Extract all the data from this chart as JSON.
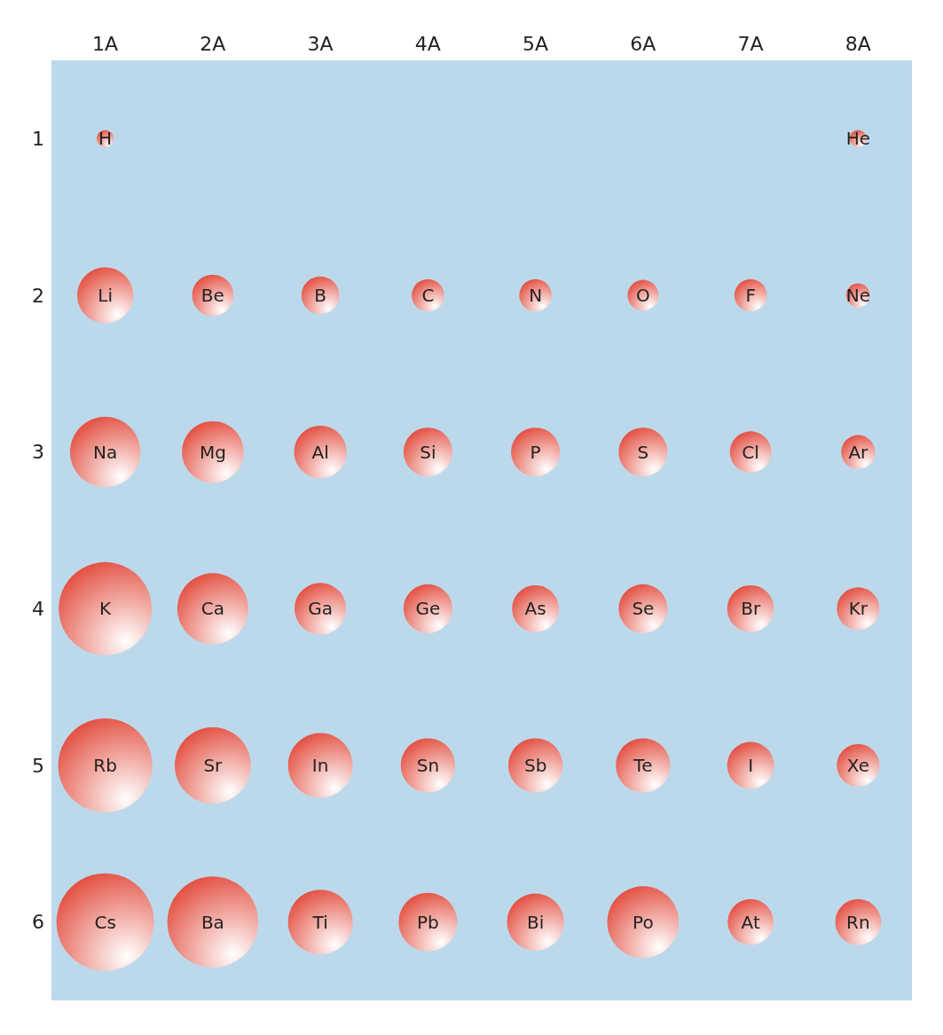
{
  "chart_data": {
    "type": "bubble",
    "categories": [
      "1A",
      "2A",
      "3A",
      "4A",
      "5A",
      "6A",
      "7A",
      "8A"
    ],
    "ylim": [
      6.5,
      0.5
    ],
    "yticks": [
      1,
      2,
      3,
      4,
      5,
      6
    ],
    "grid": false,
    "series": [
      {
        "color": "#e2493a",
        "x": [
          "1A",
          "8A"
        ],
        "values": [
          1,
          1
        ],
        "sizes": [
          0.03,
          0.03
        ],
        "value_labels": [
          "H",
          "He"
        ]
      },
      {
        "color": "#e2493a",
        "x": [
          "1A",
          "2A",
          "3A",
          "4A",
          "5A",
          "6A",
          "7A",
          "8A"
        ],
        "values": [
          2,
          2,
          2,
          2,
          2,
          2,
          2,
          2
        ],
        "sizes": [
          0.33,
          0.18,
          0.15,
          0.11,
          0.11,
          0.1,
          0.11,
          0.06
        ],
        "value_labels": [
          "Li",
          "Be",
          "B",
          "C",
          "N",
          "O",
          "F",
          "Ne"
        ]
      },
      {
        "color": "#e2493a",
        "x": [
          "1A",
          "2A",
          "3A",
          "4A",
          "5A",
          "6A",
          "7A",
          "8A"
        ],
        "values": [
          3,
          3,
          3,
          3,
          3,
          3,
          3,
          3
        ],
        "sizes": [
          0.52,
          0.4,
          0.29,
          0.25,
          0.25,
          0.25,
          0.18,
          0.12
        ],
        "value_labels": [
          "Na",
          "Mg",
          "Al",
          "Si",
          "P",
          "S",
          "Cl",
          "Ar"
        ]
      },
      {
        "color": "#e2493a",
        "x": [
          "1A",
          "2A",
          "3A",
          "4A",
          "5A",
          "6A",
          "7A",
          "8A"
        ],
        "values": [
          4,
          4,
          4,
          4,
          4,
          4,
          4,
          4
        ],
        "sizes": [
          0.91,
          0.53,
          0.28,
          0.25,
          0.23,
          0.25,
          0.23,
          0.19
        ],
        "value_labels": [
          "K",
          "Ca",
          "Ga",
          "Ge",
          "As",
          "Se",
          "Br",
          "Kr"
        ]
      },
      {
        "color": "#e2493a",
        "x": [
          "1A",
          "2A",
          "3A",
          "4A",
          "5A",
          "6A",
          "7A",
          "8A"
        ],
        "values": [
          5,
          5,
          5,
          5,
          5,
          5,
          5,
          5
        ],
        "sizes": [
          0.93,
          0.61,
          0.44,
          0.31,
          0.31,
          0.31,
          0.23,
          0.19
        ],
        "value_labels": [
          "Rb",
          "Sr",
          "In",
          "Sn",
          "Sb",
          "Te",
          "I",
          "Xe"
        ]
      },
      {
        "color": "#e2493a",
        "x": [
          "1A",
          "2A",
          "3A",
          "4A",
          "5A",
          "6A",
          "7A",
          "8A"
        ],
        "values": [
          6,
          6,
          6,
          6,
          6,
          6,
          6,
          6
        ],
        "sizes": [
          1,
          0.87,
          0.44,
          0.36,
          0.34,
          0.54,
          0.22,
          0.22
        ],
        "value_labels": [
          "Cs",
          "Ba",
          "Ti",
          "Pb",
          "Bi",
          "Po",
          "At",
          "Rn"
        ]
      }
    ]
  }
}
